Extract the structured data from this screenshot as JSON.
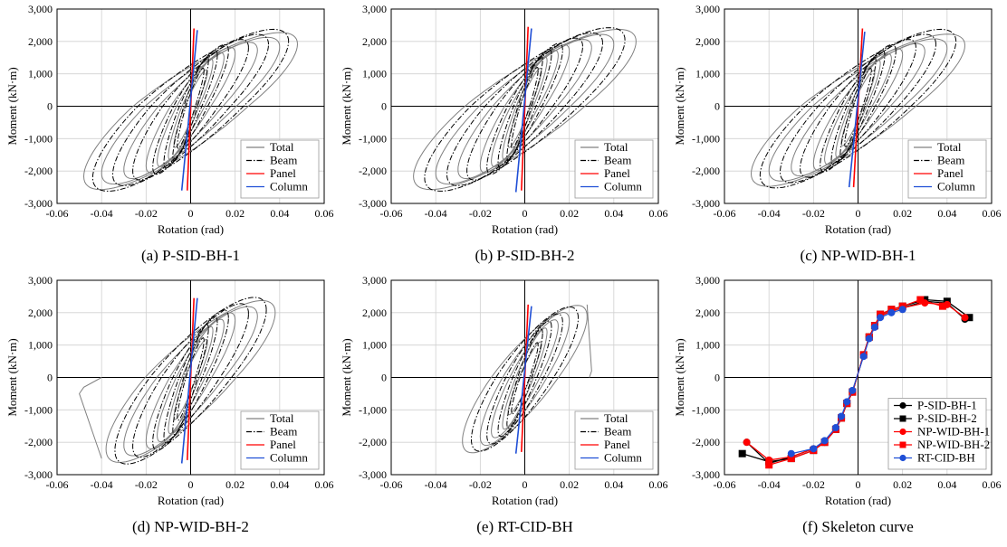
{
  "figure": {
    "axis_label_x": "Rotation (rad)",
    "axis_label_y": "Moment (kN·m)",
    "panels": [
      {
        "caption": "(a) P-SID-BH-1"
      },
      {
        "caption": "(b) P-SID-BH-2"
      },
      {
        "caption": "(c) NP-WID-BH-1"
      },
      {
        "caption": "(d) NP-WID-BH-2"
      },
      {
        "caption": "(e) RT-CID-BH"
      },
      {
        "caption": "(f) Skeleton curve"
      }
    ]
  },
  "chart_data": [
    {
      "type": "line",
      "title": "(a) P-SID-BH-1",
      "xlabel": "Rotation (rad)",
      "ylabel": "Moment (kN·m)",
      "xlim": [
        -0.06,
        0.06
      ],
      "ylim": [
        -3000,
        3000
      ],
      "x_ticks": [
        "-0.06",
        "-0.04",
        "-0.02",
        "0",
        "0.02",
        "0.04",
        "0.06"
      ],
      "y_ticks": [
        "-3,000",
        "-2,000",
        "-1,000",
        "0",
        "1,000",
        "2,000",
        "3,000"
      ],
      "legend": {
        "position": "bottom-right",
        "entries": [
          "Total",
          "Beam",
          "Panel",
          "Column"
        ]
      },
      "series": [
        {
          "name": "Total",
          "color": "#808080",
          "style": "solid",
          "amplitudes": [
            0.0075,
            0.01,
            0.015,
            0.02,
            0.03,
            0.04,
            0.048
          ],
          "peak_positive": 2300,
          "peak_negative": -2600
        },
        {
          "name": "Beam",
          "color": "#000000",
          "style": "dash-dot",
          "amplitudes": [
            0.006,
            0.008,
            0.012,
            0.017,
            0.026,
            0.035,
            0.044
          ],
          "peak_positive": 2400,
          "peak_negative": -2650
        },
        {
          "name": "Panel",
          "color": "#ff0000",
          "style": "solid",
          "points": [
            [
              -0.0015,
              -2600
            ],
            [
              0.0015,
              2400
            ]
          ]
        },
        {
          "name": "Column",
          "color": "#1f4fd6",
          "style": "solid",
          "points": [
            [
              -0.004,
              -2600
            ],
            [
              0.003,
              2350
            ]
          ]
        }
      ]
    },
    {
      "type": "line",
      "title": "(b) P-SID-BH-2",
      "xlabel": "Rotation (rad)",
      "ylabel": "Moment (kN·m)",
      "xlim": [
        -0.06,
        0.06
      ],
      "ylim": [
        -3000,
        3000
      ],
      "x_ticks": [
        "-0.06",
        "-0.04",
        "-0.02",
        "0",
        "0.02",
        "0.04",
        "0.06"
      ],
      "y_ticks": [
        "-3,000",
        "-2,000",
        "-1,000",
        "0",
        "1,000",
        "2,000",
        "3,000"
      ],
      "legend": {
        "position": "bottom-right",
        "entries": [
          "Total",
          "Beam",
          "Panel",
          "Column"
        ]
      },
      "series": [
        {
          "name": "Total",
          "color": "#808080",
          "style": "solid",
          "amplitudes": [
            0.0075,
            0.01,
            0.015,
            0.02,
            0.03,
            0.04,
            0.05
          ],
          "peak_positive": 2400,
          "peak_negative": -2600
        },
        {
          "name": "Beam",
          "color": "#000000",
          "style": "dash-dot",
          "amplitudes": [
            0.006,
            0.008,
            0.012,
            0.017,
            0.026,
            0.035,
            0.045
          ],
          "peak_positive": 2450,
          "peak_negative": -2650
        },
        {
          "name": "Panel",
          "color": "#ff0000",
          "style": "solid",
          "points": [
            [
              -0.0015,
              -2600
            ],
            [
              0.0015,
              2450
            ]
          ]
        },
        {
          "name": "Column",
          "color": "#1f4fd6",
          "style": "solid",
          "points": [
            [
              -0.004,
              -2650
            ],
            [
              0.003,
              2400
            ]
          ]
        }
      ]
    },
    {
      "type": "line",
      "title": "(c) NP-WID-BH-1",
      "xlabel": "Rotation (rad)",
      "ylabel": "Moment (kN·m)",
      "xlim": [
        -0.06,
        0.06
      ],
      "ylim": [
        -3000,
        3000
      ],
      "x_ticks": [
        "-0.06",
        "-0.04",
        "-0.02",
        "0",
        "0.02",
        "0.04",
        "0.06"
      ],
      "y_ticks": [
        "-3,000",
        "-2,000",
        "-1,000",
        "0",
        "1,000",
        "2,000",
        "3,000"
      ],
      "legend": {
        "position": "bottom-right",
        "entries": [
          "Total",
          "Beam",
          "Panel",
          "Column"
        ]
      },
      "series": [
        {
          "name": "Total",
          "color": "#808080",
          "style": "solid",
          "amplitudes": [
            0.0075,
            0.01,
            0.015,
            0.02,
            0.03,
            0.04,
            0.048
          ],
          "peak_positive": 2250,
          "peak_negative": -2500
        },
        {
          "name": "Beam",
          "color": "#000000",
          "style": "dash-dot",
          "amplitudes": [
            0.006,
            0.008,
            0.012,
            0.017,
            0.026,
            0.035,
            0.044
          ],
          "peak_positive": 2400,
          "peak_negative": -2550
        },
        {
          "name": "Panel",
          "color": "#ff0000",
          "style": "solid",
          "points": [
            [
              -0.002,
              -2500
            ],
            [
              0.002,
              2400
            ]
          ]
        },
        {
          "name": "Column",
          "color": "#1f4fd6",
          "style": "solid",
          "points": [
            [
              -0.004,
              -2500
            ],
            [
              0.003,
              2300
            ]
          ]
        }
      ]
    },
    {
      "type": "line",
      "title": "(d) NP-WID-BH-2",
      "xlabel": "Rotation (rad)",
      "ylabel": "Moment (kN·m)",
      "xlim": [
        -0.06,
        0.06
      ],
      "ylim": [
        -3000,
        3000
      ],
      "x_ticks": [
        "-0.06",
        "-0.04",
        "-0.02",
        "0",
        "0.02",
        "0.04",
        "0.06"
      ],
      "y_ticks": [
        "-3,000",
        "-2,000",
        "-1,000",
        "0",
        "1,000",
        "2,000",
        "3,000"
      ],
      "legend": {
        "position": "bottom-right",
        "entries": [
          "Total",
          "Beam",
          "Panel",
          "Column"
        ]
      },
      "series": [
        {
          "name": "Total",
          "color": "#808080",
          "style": "solid",
          "amplitudes": [
            0.0075,
            0.01,
            0.015,
            0.02,
            0.03,
            0.038
          ],
          "peak_positive": 2400,
          "peak_negative": -2650,
          "fracture_branch": [
            [
              -0.04,
              -2500
            ],
            [
              -0.05,
              -500
            ],
            [
              -0.048,
              -300
            ],
            [
              -0.04,
              0
            ]
          ]
        },
        {
          "name": "Beam",
          "color": "#000000",
          "style": "dash-dot",
          "amplitudes": [
            0.006,
            0.008,
            0.012,
            0.017,
            0.026,
            0.034
          ],
          "peak_positive": 2500,
          "peak_negative": -2700
        },
        {
          "name": "Panel",
          "color": "#ff0000",
          "style": "solid",
          "points": [
            [
              -0.0015,
              -2550
            ],
            [
              0.0015,
              2450
            ]
          ]
        },
        {
          "name": "Column",
          "color": "#1f4fd6",
          "style": "solid",
          "points": [
            [
              -0.004,
              -2650
            ],
            [
              0.003,
              2450
            ]
          ]
        }
      ]
    },
    {
      "type": "line",
      "title": "(e) RT-CID-BH",
      "xlabel": "Rotation (rad)",
      "ylabel": "Moment (kN·m)",
      "xlim": [
        -0.06,
        0.06
      ],
      "ylim": [
        -3000,
        3000
      ],
      "x_ticks": [
        "-0.06",
        "-0.04",
        "-0.02",
        "0",
        "0.02",
        "0.04",
        "0.06"
      ],
      "y_ticks": [
        "-3,000",
        "-2,000",
        "-1,000",
        "0",
        "1,000",
        "2,000",
        "3,000"
      ],
      "legend": {
        "position": "bottom-right",
        "entries": [
          "Total",
          "Beam",
          "Panel",
          "Column"
        ]
      },
      "series": [
        {
          "name": "Total",
          "color": "#808080",
          "style": "solid",
          "amplitudes": [
            0.0075,
            0.01,
            0.015,
            0.02,
            0.028
          ],
          "peak_positive": 2250,
          "peak_negative": -2350,
          "fracture_branch": [
            [
              0.028,
              2250
            ],
            [
              0.03,
              200
            ],
            [
              0.029,
              0
            ]
          ]
        },
        {
          "name": "Beam",
          "color": "#000000",
          "style": "dash-dot",
          "amplitudes": [
            0.006,
            0.008,
            0.012,
            0.017,
            0.024
          ],
          "peak_positive": 2200,
          "peak_negative": -2300
        },
        {
          "name": "Panel",
          "color": "#ff0000",
          "style": "solid",
          "points": [
            [
              -0.0015,
              -2300
            ],
            [
              0.0015,
              2250
            ]
          ]
        },
        {
          "name": "Column",
          "color": "#1f4fd6",
          "style": "solid",
          "points": [
            [
              -0.004,
              -2350
            ],
            [
              0.003,
              2200
            ]
          ]
        }
      ]
    },
    {
      "type": "line",
      "title": "(f) Skeleton curve",
      "xlabel": "Rotation (rad)",
      "ylabel": "Moment (kN·m)",
      "xlim": [
        -0.06,
        0.06
      ],
      "ylim": [
        -3000,
        3000
      ],
      "x_ticks": [
        "-0.06",
        "-0.04",
        "-0.02",
        "0",
        "0.02",
        "0.04",
        "0.06"
      ],
      "y_ticks": [
        "-3,000",
        "-2,000",
        "-1,000",
        "0",
        "1,000",
        "2,000",
        "3,000"
      ],
      "legend": {
        "position": "bottom-right",
        "entries": [
          "P-SID-BH-1",
          "P-SID-BH-2",
          "NP-WID-BH-1",
          "NP-WID-BH-2",
          "RT-CID-BH"
        ]
      },
      "series": [
        {
          "name": "P-SID-BH-1",
          "color": "#000000",
          "marker": "circle",
          "x": [
            -0.05,
            -0.04,
            -0.03,
            -0.02,
            -0.015,
            -0.01,
            -0.0075,
            -0.005,
            -0.0025,
            0.0025,
            0.005,
            0.0075,
            0.01,
            0.015,
            0.02,
            0.03,
            0.04,
            0.048
          ],
          "y": [
            -2000,
            -2650,
            -2450,
            -2200,
            -2000,
            -1600,
            -1250,
            -800,
            -450,
            700,
            1250,
            1600,
            1900,
            2050,
            2150,
            2350,
            2300,
            1800
          ]
        },
        {
          "name": "P-SID-BH-2",
          "color": "#000000",
          "marker": "square",
          "x": [
            -0.052,
            -0.04,
            -0.03,
            -0.02,
            -0.015,
            -0.01,
            -0.0075,
            -0.005,
            -0.0025,
            0.0025,
            0.005,
            0.0075,
            0.01,
            0.015,
            0.02,
            0.03,
            0.04,
            0.05
          ],
          "y": [
            -2350,
            -2600,
            -2500,
            -2250,
            -2000,
            -1600,
            -1250,
            -800,
            -450,
            700,
            1250,
            1600,
            1950,
            2100,
            2200,
            2400,
            2350,
            1850
          ]
        },
        {
          "name": "NP-WID-BH-1",
          "color": "#ff0000",
          "marker": "circle",
          "x": [
            -0.05,
            -0.04,
            -0.03,
            -0.02,
            -0.015,
            -0.01,
            -0.0075,
            -0.005,
            -0.0025,
            0.0025,
            0.005,
            0.0075,
            0.01,
            0.015,
            0.02,
            0.03,
            0.04,
            0.048
          ],
          "y": [
            -2000,
            -2550,
            -2450,
            -2200,
            -2000,
            -1600,
            -1250,
            -800,
            -450,
            700,
            1250,
            1600,
            1900,
            2050,
            2150,
            2300,
            2250,
            1850
          ]
        },
        {
          "name": "NP-WID-BH-2",
          "color": "#ff0000",
          "marker": "square",
          "x": [
            -0.04,
            -0.03,
            -0.02,
            -0.015,
            -0.01,
            -0.0075,
            -0.005,
            -0.0025,
            0.0025,
            0.005,
            0.0075,
            0.01,
            0.015,
            0.02,
            0.028,
            0.038
          ],
          "y": [
            -2700,
            -2500,
            -2250,
            -2000,
            -1600,
            -1250,
            -800,
            -450,
            700,
            1250,
            1600,
            1950,
            2100,
            2200,
            2400,
            2200
          ]
        },
        {
          "name": "RT-CID-BH",
          "color": "#1f4fd6",
          "marker": "circle",
          "x": [
            -0.03,
            -0.02,
            -0.015,
            -0.01,
            -0.0075,
            -0.005,
            -0.0025,
            0.0025,
            0.005,
            0.0075,
            0.01,
            0.015,
            0.02
          ],
          "y": [
            -2350,
            -2200,
            -1950,
            -1550,
            -1200,
            -750,
            -400,
            650,
            1200,
            1550,
            1850,
            2000,
            2100
          ]
        }
      ]
    }
  ]
}
